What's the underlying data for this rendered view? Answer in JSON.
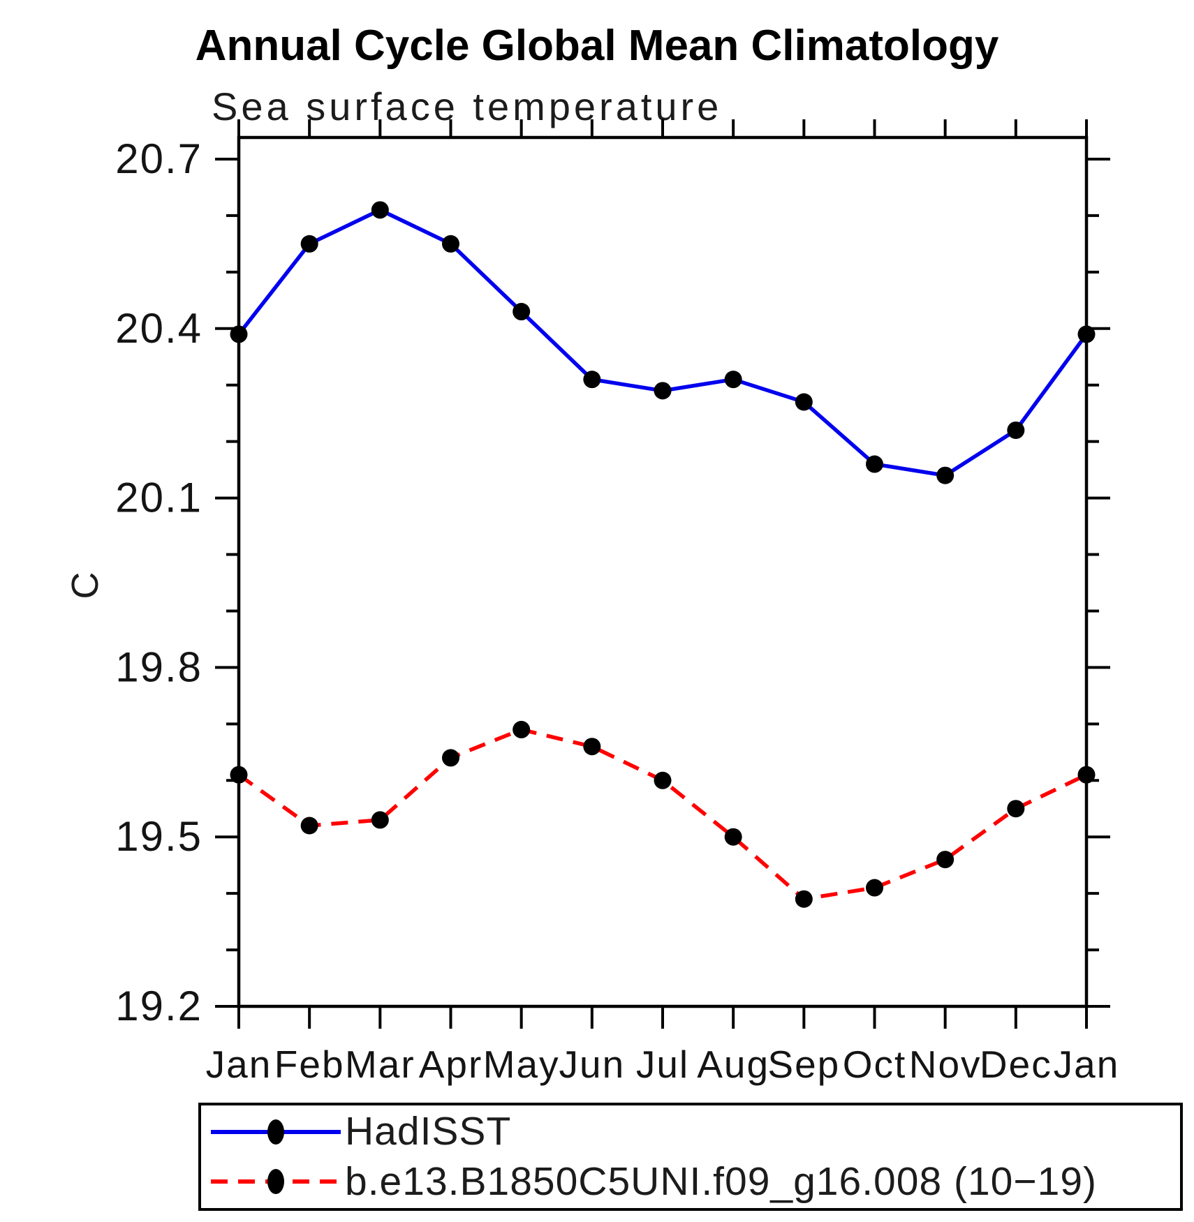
{
  "header": {
    "title": "Annual Cycle Global Mean Climatology",
    "subtitle": "Sea surface temperature"
  },
  "chart_data": {
    "type": "line",
    "title": "Annual Cycle Global Mean Climatology",
    "subtitle": "Sea surface temperature",
    "ylabel": "C",
    "xlabel": "",
    "categories": [
      "Jan",
      "Feb",
      "Mar",
      "Apr",
      "May",
      "Jun",
      "Jul",
      "Aug",
      "Sep",
      "Oct",
      "Nov",
      "Dec",
      "Jan"
    ],
    "series": [
      {
        "name": "HadISST",
        "style": "solid",
        "color": "#0000ee",
        "marker": "circle",
        "marker_color": "#000000",
        "values": [
          20.39,
          20.55,
          20.61,
          20.55,
          20.43,
          20.31,
          20.29,
          20.31,
          20.27,
          20.16,
          20.14,
          20.22,
          20.39
        ]
      },
      {
        "name": "b.e13.B1850C5UNI.f09_g16.008 (10−19)",
        "style": "dashed",
        "color": "#ff0000",
        "marker": "circle",
        "marker_color": "#000000",
        "values": [
          19.61,
          19.52,
          19.53,
          19.64,
          19.69,
          19.66,
          19.6,
          19.5,
          19.39,
          19.41,
          19.46,
          19.55,
          19.61
        ]
      }
    ],
    "ylim": [
      19.2,
      20.74
    ],
    "yticks_major": [
      20.7,
      20.4,
      20.1,
      19.8,
      19.5,
      19.2
    ],
    "ytick_minor_step": 0.1,
    "grid": false,
    "legend_position": "bottom-left-box",
    "axis_color": "#000000",
    "tick_style": "outward-box"
  }
}
